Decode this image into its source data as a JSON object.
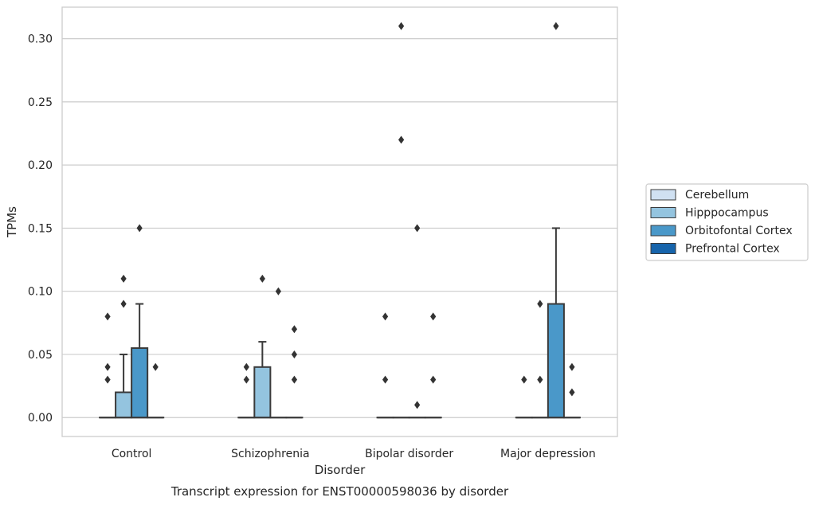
{
  "chart_data": {
    "type": "box",
    "title": "Transcript expression for ENST00000598036 by disorder",
    "xlabel": "Disorder",
    "ylabel": "TPMs",
    "ylim": [
      -0.015,
      0.325
    ],
    "yticks": [
      "0.00",
      "0.05",
      "0.10",
      "0.15",
      "0.20",
      "0.25",
      "0.30"
    ],
    "categories": [
      "Control",
      "Schizophrenia",
      "Bipolar disorder",
      "Major depression"
    ],
    "grid": true,
    "legend_position": "right",
    "series": [
      {
        "name": "Cerebellum",
        "color": "#d0e1f2",
        "boxes": [
          {
            "q1": 0.0,
            "median": 0.0,
            "q3": 0.0,
            "whisker_low": 0.0,
            "whisker_high": 0.0,
            "outliers": [
              0.03,
              0.04,
              0.08
            ]
          },
          {
            "q1": 0.0,
            "median": 0.0,
            "q3": 0.0,
            "whisker_low": 0.0,
            "whisker_high": 0.0,
            "outliers": [
              0.03,
              0.04
            ]
          },
          {
            "q1": 0.0,
            "median": 0.0,
            "q3": 0.0,
            "whisker_low": 0.0,
            "whisker_high": 0.0,
            "outliers": [
              0.03,
              0.08
            ]
          },
          {
            "q1": 0.0,
            "median": 0.0,
            "q3": 0.0,
            "whisker_low": 0.0,
            "whisker_high": 0.0,
            "outliers": [
              0.03
            ]
          }
        ]
      },
      {
        "name": "Hipppocampus",
        "color": "#94c4df",
        "boxes": [
          {
            "q1": 0.0,
            "median": 0.0,
            "q3": 0.02,
            "whisker_low": 0.0,
            "whisker_high": 0.05,
            "outliers": [
              0.09,
              0.11
            ]
          },
          {
            "q1": 0.0,
            "median": 0.0,
            "q3": 0.04,
            "whisker_low": 0.0,
            "whisker_high": 0.06,
            "outliers": [
              0.11
            ]
          },
          {
            "q1": 0.0,
            "median": 0.0,
            "q3": 0.0,
            "whisker_low": 0.0,
            "whisker_high": 0.0,
            "outliers": [
              0.22,
              0.31
            ]
          },
          {
            "q1": 0.0,
            "median": 0.0,
            "q3": 0.0,
            "whisker_low": 0.0,
            "whisker_high": 0.0,
            "outliers": [
              0.03,
              0.09
            ]
          }
        ]
      },
      {
        "name": "Orbitofontal Cortex",
        "color": "#4a98c9",
        "boxes": [
          {
            "q1": 0.0,
            "median": 0.0,
            "q3": 0.055,
            "whisker_low": 0.0,
            "whisker_high": 0.09,
            "outliers": [
              0.15
            ]
          },
          {
            "q1": 0.0,
            "median": 0.0,
            "q3": 0.0,
            "whisker_low": 0.0,
            "whisker_high": 0.0,
            "outliers": [
              0.1
            ]
          },
          {
            "q1": 0.0,
            "median": 0.0,
            "q3": 0.0,
            "whisker_low": 0.0,
            "whisker_high": 0.0,
            "outliers": [
              0.01,
              0.15
            ]
          },
          {
            "q1": 0.0,
            "median": 0.0,
            "q3": 0.09,
            "whisker_low": 0.0,
            "whisker_high": 0.15,
            "outliers": [
              0.31
            ]
          }
        ]
      },
      {
        "name": "Prefrontal Cortex",
        "color": "#1764ab",
        "boxes": [
          {
            "q1": 0.0,
            "median": 0.0,
            "q3": 0.0,
            "whisker_low": 0.0,
            "whisker_high": 0.0,
            "outliers": [
              0.04
            ]
          },
          {
            "q1": 0.0,
            "median": 0.0,
            "q3": 0.0,
            "whisker_low": 0.0,
            "whisker_high": 0.0,
            "outliers": [
              0.03,
              0.05,
              0.07
            ]
          },
          {
            "q1": 0.0,
            "median": 0.0,
            "q3": 0.0,
            "whisker_low": 0.0,
            "whisker_high": 0.0,
            "outliers": [
              0.03,
              0.08
            ]
          },
          {
            "q1": 0.0,
            "median": 0.0,
            "q3": 0.0,
            "whisker_low": 0.0,
            "whisker_high": 0.0,
            "outliers": [
              0.02,
              0.04
            ]
          }
        ]
      }
    ]
  },
  "colors": {
    "grid": "#cccccc",
    "frame": "#cccccc",
    "box_line": "#3a3a3a",
    "outlier": "#333333",
    "legend_border": "#cccccc"
  }
}
